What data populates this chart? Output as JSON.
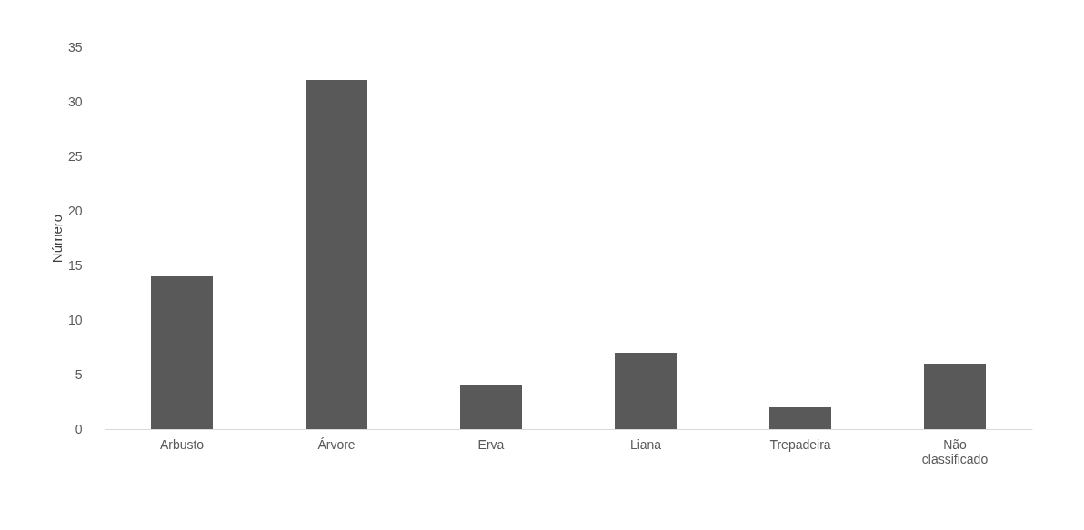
{
  "chart_data": {
    "type": "bar",
    "ylabel": "Número",
    "categories": [
      "Arbusto",
      "Árvore",
      "Erva",
      "Liana",
      "Trepadeira",
      "Não classificado"
    ],
    "values": [
      14,
      32,
      4,
      7,
      2,
      6
    ],
    "color": "#595959",
    "ylim": [
      0,
      35
    ],
    "yticks": [
      0,
      5,
      10,
      15,
      20,
      25,
      30,
      35
    ],
    "grid": false
  }
}
